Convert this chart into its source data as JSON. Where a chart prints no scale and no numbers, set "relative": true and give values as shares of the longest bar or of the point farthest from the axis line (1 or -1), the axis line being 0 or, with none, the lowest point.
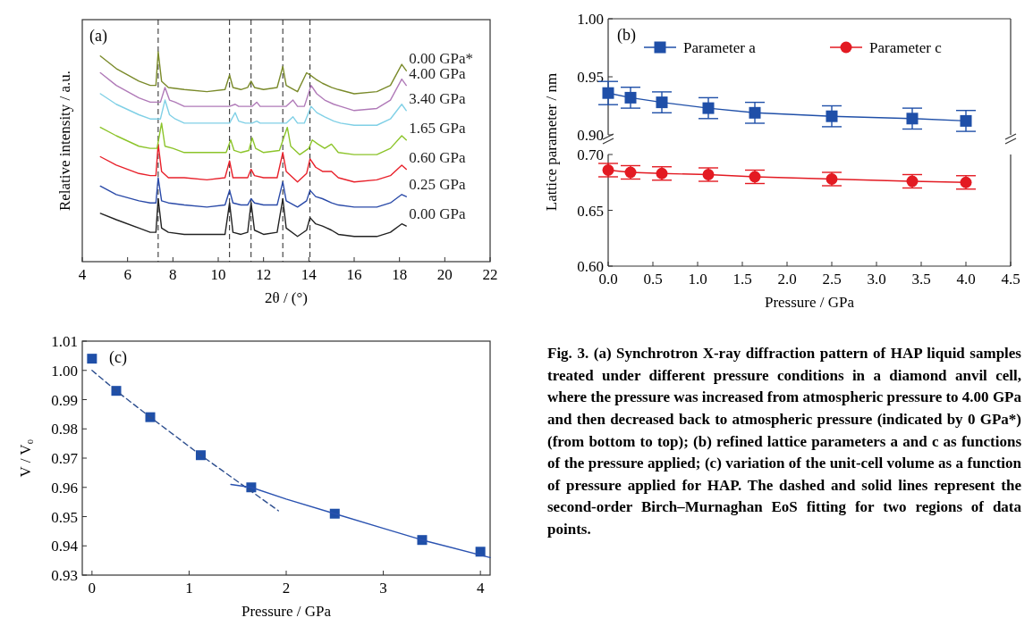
{
  "chart_data": [
    {
      "type": "line",
      "relative": true,
      "xlabel": "2θ / (°)",
      "ylabel": "Relative intensity / a.u.",
      "xlim": [
        4,
        22
      ],
      "xticks": [
        4,
        6,
        8,
        10,
        12,
        14,
        16,
        18,
        20,
        22
      ],
      "legend": false,
      "annotations": [
        "(a)"
      ],
      "ref_lines": [
        {
          "axis": "x",
          "value": 7.35,
          "line_style": "dashed"
        },
        {
          "axis": "x",
          "value": 10.5,
          "line_style": "dashed"
        },
        {
          "axis": "x",
          "value": 11.45,
          "line_style": "dashed"
        },
        {
          "axis": "x",
          "value": 12.85,
          "line_style": "dashed"
        },
        {
          "axis": "x",
          "value": 14.05,
          "line_style": "dashed"
        }
      ],
      "series": [
        {
          "name": "0.00 GPa",
          "color": "#222222",
          "x": [
            4.8,
            5.5,
            6.5,
            7.0,
            7.25,
            7.35,
            7.5,
            7.8,
            8.5,
            9.5,
            10.3,
            10.5,
            10.65,
            11.0,
            11.3,
            11.45,
            11.6,
            12.0,
            12.6,
            12.85,
            13.0,
            13.5,
            13.9,
            14.05,
            14.3,
            14.6,
            15.0,
            15.3,
            16.0,
            17.0,
            17.6,
            18.1,
            18.3
          ],
          "values": [
            0.23,
            0.2,
            0.16,
            0.14,
            0.14,
            0.3,
            0.16,
            0.14,
            0.13,
            0.13,
            0.13,
            0.28,
            0.14,
            0.13,
            0.14,
            0.28,
            0.15,
            0.13,
            0.14,
            0.3,
            0.16,
            0.12,
            0.15,
            0.21,
            0.18,
            0.17,
            0.15,
            0.13,
            0.12,
            0.12,
            0.14,
            0.18,
            0.17
          ]
        },
        {
          "name": "0.25 GPa",
          "color": "#2a4aa8",
          "x": [
            4.8,
            5.5,
            6.5,
            7.0,
            7.25,
            7.35,
            7.5,
            7.8,
            8.5,
            9.5,
            10.3,
            10.5,
            10.65,
            11.0,
            11.3,
            11.45,
            11.6,
            12.0,
            12.6,
            12.85,
            13.0,
            13.5,
            13.9,
            14.05,
            14.3,
            14.6,
            15.0,
            15.3,
            16.0,
            17.0,
            17.6,
            18.1,
            18.3
          ],
          "values": [
            0.36,
            0.32,
            0.29,
            0.28,
            0.28,
            0.4,
            0.29,
            0.28,
            0.27,
            0.26,
            0.27,
            0.34,
            0.28,
            0.27,
            0.27,
            0.3,
            0.28,
            0.27,
            0.27,
            0.38,
            0.29,
            0.26,
            0.29,
            0.34,
            0.31,
            0.3,
            0.28,
            0.27,
            0.26,
            0.26,
            0.28,
            0.32,
            0.31
          ]
        },
        {
          "name": "0.60 GPa",
          "color": "#e8202a",
          "x": [
            4.8,
            5.5,
            6.5,
            7.0,
            7.25,
            7.35,
            7.5,
            7.8,
            8.5,
            9.5,
            10.3,
            10.5,
            10.65,
            11.0,
            11.3,
            11.45,
            11.6,
            12.0,
            12.6,
            12.85,
            13.0,
            13.5,
            13.9,
            14.05,
            14.3,
            14.6,
            15.0,
            15.3,
            16.0,
            17.0,
            17.6,
            18.1,
            18.3
          ],
          "values": [
            0.5,
            0.46,
            0.42,
            0.41,
            0.41,
            0.56,
            0.43,
            0.4,
            0.4,
            0.39,
            0.4,
            0.48,
            0.4,
            0.4,
            0.4,
            0.44,
            0.41,
            0.4,
            0.4,
            0.52,
            0.43,
            0.38,
            0.42,
            0.49,
            0.45,
            0.43,
            0.43,
            0.4,
            0.38,
            0.39,
            0.41,
            0.46,
            0.44
          ]
        },
        {
          "name": "1.65 GPa",
          "color": "#8cc42a",
          "x": [
            4.8,
            5.5,
            6.5,
            7.0,
            7.3,
            7.5,
            7.65,
            8.0,
            8.5,
            9.5,
            10.35,
            10.55,
            10.7,
            11.0,
            11.35,
            11.5,
            11.65,
            12.0,
            12.7,
            13.05,
            13.2,
            13.6,
            14.0,
            14.15,
            14.4,
            14.7,
            15.0,
            15.3,
            16.0,
            17.0,
            17.6,
            18.1,
            18.3
          ],
          "values": [
            0.64,
            0.6,
            0.55,
            0.54,
            0.54,
            0.66,
            0.55,
            0.54,
            0.52,
            0.52,
            0.52,
            0.58,
            0.53,
            0.52,
            0.53,
            0.59,
            0.54,
            0.52,
            0.53,
            0.64,
            0.55,
            0.51,
            0.54,
            0.58,
            0.56,
            0.54,
            0.56,
            0.52,
            0.51,
            0.51,
            0.54,
            0.6,
            0.58
          ]
        },
        {
          "name": "3.40 GPa",
          "color": "#80d0e6",
          "x": [
            4.8,
            5.5,
            6.5,
            7.0,
            7.45,
            7.65,
            7.85,
            8.1,
            8.5,
            9.5,
            10.5,
            10.75,
            10.9,
            11.2,
            11.5,
            11.7,
            11.85,
            12.2,
            13.0,
            13.3,
            13.5,
            13.8,
            13.95,
            14.1,
            14.35,
            14.7,
            15.1,
            15.4,
            16.0,
            17.0,
            17.6,
            18.1,
            18.3
          ],
          "values": [
            0.8,
            0.75,
            0.7,
            0.68,
            0.68,
            0.77,
            0.7,
            0.68,
            0.66,
            0.66,
            0.66,
            0.71,
            0.67,
            0.66,
            0.66,
            0.67,
            0.66,
            0.66,
            0.66,
            0.69,
            0.66,
            0.66,
            0.7,
            0.74,
            0.71,
            0.69,
            0.67,
            0.66,
            0.65,
            0.65,
            0.68,
            0.75,
            0.72
          ]
        },
        {
          "name": "4.00 GPa",
          "color": "#b07ab8",
          "x": [
            4.8,
            5.5,
            6.5,
            7.0,
            7.45,
            7.65,
            7.85,
            8.1,
            8.5,
            9.5,
            10.5,
            10.75,
            10.9,
            11.2,
            11.5,
            11.7,
            11.85,
            12.2,
            13.0,
            13.3,
            13.5,
            13.8,
            13.95,
            14.1,
            14.35,
            14.7,
            15.1,
            15.4,
            16.0,
            17.0,
            17.6,
            18.1,
            18.3
          ],
          "values": [
            0.9,
            0.84,
            0.78,
            0.76,
            0.76,
            0.83,
            0.77,
            0.76,
            0.74,
            0.74,
            0.74,
            0.75,
            0.74,
            0.74,
            0.74,
            0.76,
            0.74,
            0.74,
            0.74,
            0.77,
            0.74,
            0.74,
            0.79,
            0.84,
            0.8,
            0.77,
            0.75,
            0.74,
            0.72,
            0.73,
            0.77,
            0.87,
            0.84
          ]
        },
        {
          "name": "0.00 GPa*",
          "color": "#7a8a2a",
          "x": [
            4.8,
            5.5,
            6.5,
            7.0,
            7.25,
            7.35,
            7.5,
            7.8,
            8.5,
            9.5,
            10.3,
            10.5,
            10.65,
            11.0,
            11.3,
            11.45,
            11.6,
            12.0,
            12.6,
            12.85,
            13.0,
            13.5,
            13.9,
            14.05,
            14.3,
            14.6,
            15.0,
            15.3,
            16.0,
            17.0,
            17.6,
            18.1,
            18.3
          ],
          "values": [
            0.98,
            0.92,
            0.86,
            0.84,
            0.84,
            1.0,
            0.86,
            0.83,
            0.82,
            0.81,
            0.82,
            0.89,
            0.83,
            0.82,
            0.83,
            0.86,
            0.83,
            0.82,
            0.83,
            0.93,
            0.84,
            0.81,
            0.9,
            0.89,
            0.87,
            0.85,
            0.83,
            0.82,
            0.8,
            0.81,
            0.84,
            0.94,
            0.91
          ]
        }
      ]
    },
    {
      "type": "line",
      "tick_labels": "y",
      "xlim": [
        0,
        4.5
      ],
      "ylim": [
        0.9,
        1.0
      ],
      "yticks": [
        {
          "value": 0.9,
          "label": "0.90"
        },
        0.95,
        {
          "value": 1.0,
          "label": "1.00"
        }
      ],
      "legend": "top",
      "annotations": [
        "(b)"
      ],
      "x": [
        0,
        0.25,
        0.6,
        1.12,
        1.64,
        2.5,
        3.4,
        4.0
      ],
      "series": [
        {
          "name": "Parameter a",
          "color": "#1f4fa8",
          "marker": "square",
          "values": [
            0.936,
            0.932,
            0.928,
            0.923,
            0.919,
            0.916,
            0.914,
            0.912
          ],
          "errors": [
            0.01,
            0.009,
            0.009,
            0.009,
            0.009,
            0.009,
            0.009,
            0.009
          ]
        }
      ]
    },
    {
      "type": "line",
      "xlabel": "Pressure / GPa",
      "ylabel": "Lattice parameter / nm",
      "xlim": [
        0,
        4.5
      ],
      "xticks": [
        {
          "value": 0,
          "label": "0.0"
        },
        0.5,
        {
          "value": 1,
          "label": "1.0"
        },
        1.5,
        {
          "value": 2,
          "label": "2.0"
        },
        2.5,
        {
          "value": 3,
          "label": "3.0"
        },
        3.5,
        {
          "value": 4,
          "label": "4.0"
        },
        4.5
      ],
      "ylim": [
        0.6,
        0.7
      ],
      "yticks": [
        {
          "value": 0.6,
          "label": "0.60"
        },
        0.65,
        {
          "value": 0.7,
          "label": "0.70"
        }
      ],
      "legend": "top",
      "x": [
        0,
        0.25,
        0.6,
        1.12,
        1.64,
        2.5,
        3.4,
        4.0
      ],
      "series": [
        {
          "name": "Parameter c",
          "color": "#e31a22",
          "marker": "circle",
          "values": [
            0.686,
            0.684,
            0.683,
            0.682,
            0.68,
            0.678,
            0.676,
            0.675
          ],
          "errors": [
            0.006,
            0.006,
            0.006,
            0.006,
            0.006,
            0.006,
            0.006,
            0.006
          ]
        }
      ]
    },
    {
      "type": "scatter",
      "xlabel": "Pressure / GPa",
      "ylabel": "V / V₀",
      "xlim": [
        -0.1,
        4.1
      ],
      "xticks": [
        0,
        1,
        2,
        3,
        4
      ],
      "ylim": [
        0.93,
        1.01
      ],
      "yticks": [
        0.93,
        0.94,
        0.95,
        0.96,
        0.97,
        0.98,
        0.99,
        {
          "value": 1.0,
          "label": "1.00"
        },
        1.01
      ],
      "annotations": [
        "(c)"
      ],
      "series": [
        {
          "color": "#1f4fa8",
          "marker": "square",
          "x": [
            0,
            0.25,
            0.6,
            1.12,
            1.64,
            2.5,
            3.4,
            4.0
          ],
          "values": [
            1.004,
            0.993,
            0.984,
            0.971,
            0.96,
            0.951,
            0.942,
            0.938
          ]
        },
        {
          "type": "line",
          "color": "#2e4f8f",
          "line_style": "dashed",
          "x": [
            0,
            0.25,
            0.6,
            1.12,
            1.5,
            1.92
          ],
          "values": [
            1.0,
            0.993,
            0.984,
            0.971,
            0.962,
            0.952
          ]
        },
        {
          "type": "line",
          "color": "#2a52b0",
          "line_style": "solid",
          "x": [
            1.43,
            1.64,
            2.0,
            2.5,
            3.0,
            3.4,
            4.1
          ],
          "values": [
            0.961,
            0.96,
            0.956,
            0.951,
            0.946,
            0.942,
            0.936
          ]
        }
      ]
    },
    {
      "type": "other",
      "annotations": [
        "Fig. 3.  (a) Synchrotron X-ray diffraction pattern of HAP liquid samples treated under different pressure conditions in a diamond anvil cell, where the pressure was increased from atmospheric pressure to 4.00 GPa and then decreased back to atmospheric pressure (indicated by 0 GPa*) (from bottom to top); (b) refined lattice parameters a and c as functions of the pressure applied; (c) variation of the unit-cell volume as a function of pressure applied for HAP. The dashed and solid lines represent the second-order Birch–Murnaghan EoS fitting for two regions of data points."
      ]
    }
  ]
}
